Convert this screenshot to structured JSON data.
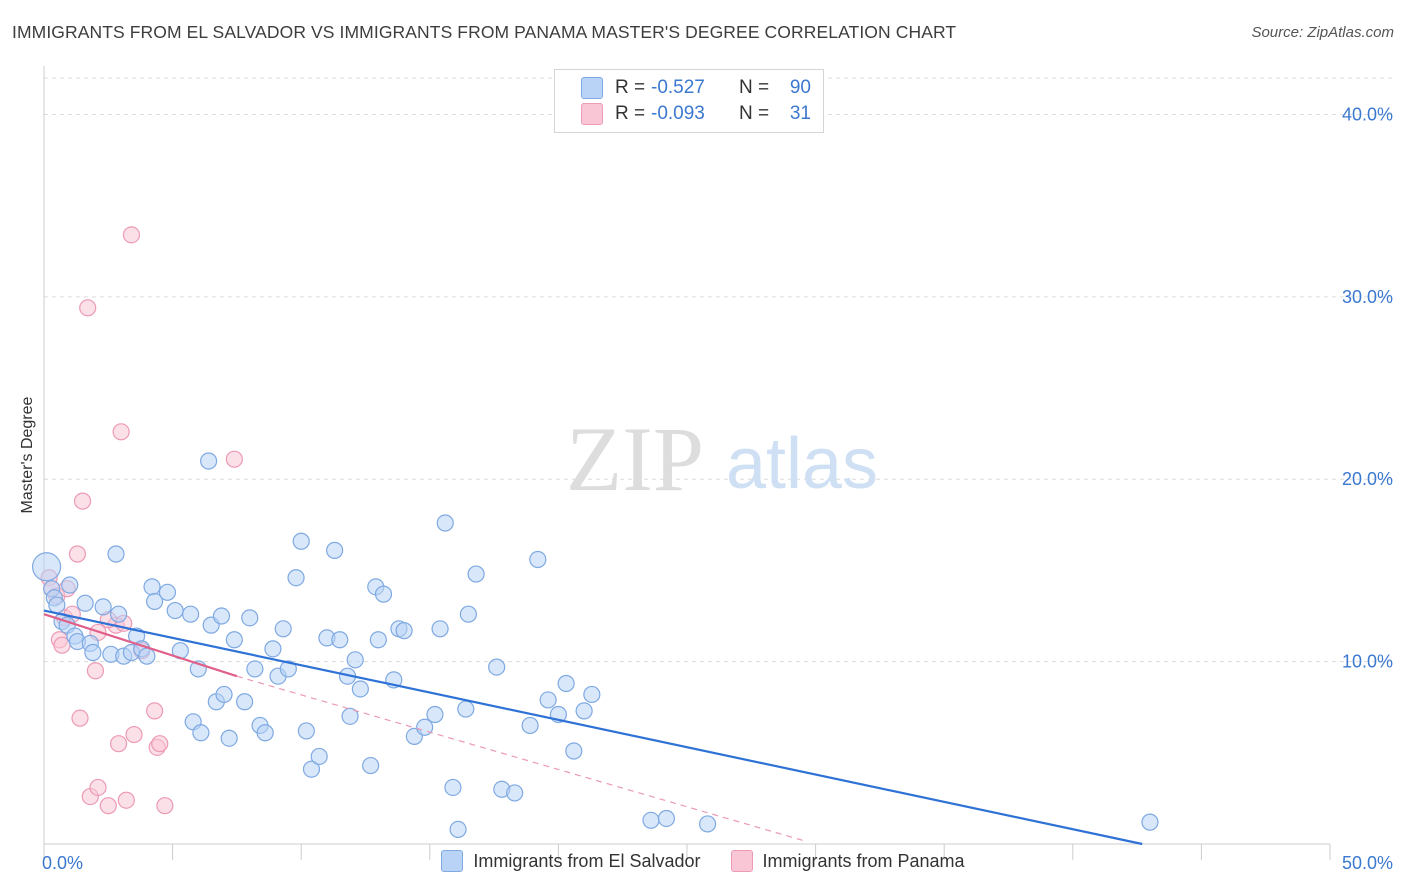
{
  "header": {
    "title": "IMMIGRANTS FROM EL SALVADOR VS IMMIGRANTS FROM PANAMA MASTER'S DEGREE CORRELATION CHART",
    "source": "Source: ZipAtlas.com"
  },
  "watermark": {
    "zip": "ZIP",
    "atlas": "atlas"
  },
  "stats": [
    {
      "r_label": "R =",
      "r_value": "-0.527",
      "n_label": "N =",
      "n_value": "90",
      "color": "#b8d3f5"
    },
    {
      "r_label": "R =",
      "r_value": "-0.093",
      "n_label": "N =",
      "n_value": "31",
      "color": "#f9c6d6"
    }
  ],
  "legend": {
    "series1": "Immigrants from El Salvador",
    "series2": "Immigrants from Panama"
  },
  "chart_data": {
    "type": "scatter",
    "title": "IMMIGRANTS FROM EL SALVADOR VS IMMIGRANTS FROM PANAMA MASTER'S DEGREE CORRELATION CHART",
    "xlabel": "",
    "ylabel": "Master's Degree",
    "xlim": [
      0,
      50
    ],
    "ylim": [
      0,
      42
    ],
    "x_tick_labels": [
      {
        "value": 0,
        "label": "0.0%"
      },
      {
        "value": 50,
        "label": "50.0%"
      }
    ],
    "y_tick_labels": [
      {
        "value": 10,
        "label": "10.0%"
      },
      {
        "value": 20,
        "label": "20.0%"
      },
      {
        "value": 30,
        "label": "30.0%"
      },
      {
        "value": 40,
        "label": "40.0%"
      }
    ],
    "series": [
      {
        "name": "Immigrants from El Salvador",
        "color": "#7fa9e2",
        "fill": "#b8d3f5",
        "trend": {
          "x": [
            0,
            42.7
          ],
          "y": [
            12.8,
            0
          ]
        },
        "points": [
          [
            0.1,
            15.2
          ],
          [
            0.3,
            14.0
          ],
          [
            0.4,
            13.5
          ],
          [
            0.5,
            13.1
          ],
          [
            0.7,
            12.2
          ],
          [
            0.9,
            12.0
          ],
          [
            1.0,
            14.2
          ],
          [
            1.2,
            11.4
          ],
          [
            1.3,
            11.1
          ],
          [
            1.6,
            13.2
          ],
          [
            1.8,
            11.0
          ],
          [
            1.9,
            10.5
          ],
          [
            2.3,
            13.0
          ],
          [
            2.6,
            10.4
          ],
          [
            2.8,
            15.9
          ],
          [
            2.9,
            12.6
          ],
          [
            3.1,
            10.3
          ],
          [
            3.4,
            10.5
          ],
          [
            3.6,
            11.4
          ],
          [
            3.8,
            10.7
          ],
          [
            4.0,
            10.3
          ],
          [
            4.2,
            14.1
          ],
          [
            4.3,
            13.3
          ],
          [
            4.8,
            13.8
          ],
          [
            5.1,
            12.8
          ],
          [
            5.3,
            10.6
          ],
          [
            5.7,
            12.6
          ],
          [
            5.8,
            6.7
          ],
          [
            6.0,
            9.6
          ],
          [
            6.1,
            6.1
          ],
          [
            6.5,
            12.0
          ],
          [
            6.7,
            7.8
          ],
          [
            6.9,
            12.5
          ],
          [
            7.0,
            8.2
          ],
          [
            7.2,
            5.8
          ],
          [
            7.4,
            11.2
          ],
          [
            7.8,
            7.8
          ],
          [
            8.0,
            12.4
          ],
          [
            8.2,
            9.6
          ],
          [
            8.4,
            6.5
          ],
          [
            8.6,
            6.1
          ],
          [
            8.9,
            10.7
          ],
          [
            9.1,
            9.2
          ],
          [
            9.3,
            11.8
          ],
          [
            9.5,
            9.6
          ],
          [
            9.8,
            14.6
          ],
          [
            10.0,
            16.6
          ],
          [
            10.2,
            6.2
          ],
          [
            10.4,
            4.1
          ],
          [
            10.7,
            4.8
          ],
          [
            11.0,
            11.3
          ],
          [
            11.3,
            16.1
          ],
          [
            11.5,
            11.2
          ],
          [
            11.8,
            9.2
          ],
          [
            11.9,
            7.0
          ],
          [
            12.1,
            10.1
          ],
          [
            12.3,
            8.5
          ],
          [
            12.7,
            4.3
          ],
          [
            12.9,
            14.1
          ],
          [
            13.0,
            11.2
          ],
          [
            13.2,
            13.7
          ],
          [
            13.6,
            9.0
          ],
          [
            13.8,
            11.8
          ],
          [
            14.0,
            11.7
          ],
          [
            14.4,
            5.9
          ],
          [
            14.8,
            6.4
          ],
          [
            15.2,
            7.1
          ],
          [
            15.4,
            11.8
          ],
          [
            15.6,
            17.6
          ],
          [
            15.9,
            3.1
          ],
          [
            16.1,
            0.8
          ],
          [
            16.4,
            7.4
          ],
          [
            16.5,
            12.6
          ],
          [
            16.8,
            14.8
          ],
          [
            17.6,
            9.7
          ],
          [
            17.8,
            3.0
          ],
          [
            18.3,
            2.8
          ],
          [
            18.9,
            6.5
          ],
          [
            19.2,
            15.6
          ],
          [
            19.6,
            7.9
          ],
          [
            20.0,
            7.1
          ],
          [
            20.3,
            8.8
          ],
          [
            20.6,
            5.1
          ],
          [
            21.0,
            7.3
          ],
          [
            21.3,
            8.2
          ],
          [
            23.6,
            1.3
          ],
          [
            24.2,
            1.4
          ],
          [
            25.8,
            1.1
          ],
          [
            43.0,
            1.2
          ],
          [
            6.4,
            21.0
          ]
        ]
      },
      {
        "name": "Immigrants from Panama",
        "color": "#ec9ab5",
        "fill": "#f9c6d6",
        "trend": {
          "x": [
            0,
            7.5
          ],
          "y": [
            12.6,
            9.2
          ]
        },
        "trend_ext": {
          "x": [
            7.5,
            29.5
          ],
          "y": [
            9.2,
            0.2
          ]
        },
        "points": [
          [
            0.2,
            14.6
          ],
          [
            0.3,
            14.0
          ],
          [
            0.5,
            13.6
          ],
          [
            0.6,
            11.2
          ],
          [
            0.7,
            10.9
          ],
          [
            0.8,
            12.4
          ],
          [
            0.9,
            14.0
          ],
          [
            1.1,
            12.6
          ],
          [
            1.3,
            15.9
          ],
          [
            1.4,
            6.9
          ],
          [
            1.5,
            18.8
          ],
          [
            1.7,
            29.4
          ],
          [
            1.8,
            2.6
          ],
          [
            2.0,
            9.5
          ],
          [
            2.1,
            3.1
          ],
          [
            2.5,
            2.1
          ],
          [
            2.8,
            12.0
          ],
          [
            2.9,
            5.5
          ],
          [
            3.0,
            22.6
          ],
          [
            3.2,
            2.4
          ],
          [
            3.4,
            33.4
          ],
          [
            3.5,
            6.0
          ],
          [
            3.8,
            10.6
          ],
          [
            4.3,
            7.3
          ],
          [
            4.4,
            5.3
          ],
          [
            4.5,
            5.5
          ],
          [
            4.7,
            2.1
          ],
          [
            7.4,
            21.1
          ],
          [
            3.1,
            12.1
          ],
          [
            2.1,
            11.6
          ],
          [
            2.5,
            12.3
          ]
        ]
      }
    ]
  }
}
